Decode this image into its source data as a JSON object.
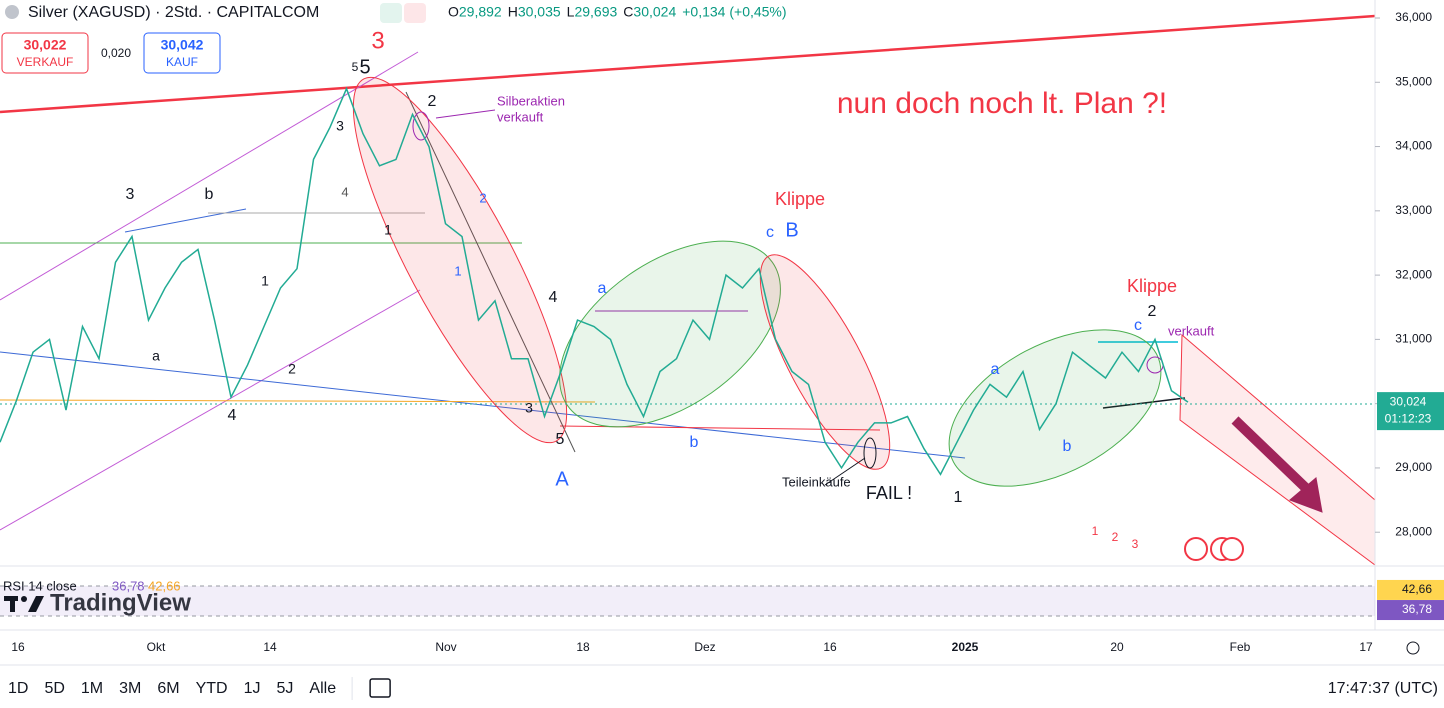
{
  "header": {
    "symbol": "Silver (XAGUSD) · 2Std. · CAPITALCOM",
    "ohlc": [
      {
        "key": "O",
        "value": "29,892"
      },
      {
        "key": "H",
        "value": "30,035"
      },
      {
        "key": "L",
        "value": "29,693"
      },
      {
        "key": "C",
        "value": "30,024"
      }
    ],
    "change": "+0,134 (+0,45%)"
  },
  "trade": {
    "sell_price": "30,022",
    "sell_label": "VERKAUF",
    "spread": "0,020",
    "buy_price": "30,042",
    "buy_label": "KAUF"
  },
  "chart_data": {
    "type": "line",
    "ylim": [
      27.49,
      36.28
    ],
    "yticks": [
      {
        "value": 28,
        "label": "28,000"
      },
      {
        "value": 29,
        "label": "29,000"
      },
      {
        "value": 30,
        "label": "30,000"
      },
      {
        "value": 31,
        "label": "31,000"
      },
      {
        "value": 32,
        "label": "32,000"
      },
      {
        "value": 33,
        "label": "33,000"
      },
      {
        "value": 34,
        "label": "34,000"
      },
      {
        "value": 35,
        "label": "35,000"
      },
      {
        "value": 36,
        "label": "36,000"
      }
    ],
    "color": "#22ab94",
    "values": [
      29.4,
      30.05,
      30.8,
      31.0,
      29.9,
      31.2,
      30.7,
      32.2,
      32.6,
      31.3,
      31.8,
      32.2,
      32.4,
      31.3,
      30.1,
      30.6,
      31.2,
      31.8,
      32.1,
      33.8,
      34.3,
      34.9,
      34.2,
      33.7,
      33.8,
      34.5,
      34.0,
      32.8,
      32.6,
      31.3,
      31.6,
      30.7,
      30.7,
      29.8,
      30.5,
      31.3,
      31.2,
      31.0,
      30.3,
      29.8,
      30.5,
      30.7,
      31.3,
      31.0,
      32.0,
      31.8,
      32.1,
      31.0,
      30.5,
      30.3,
      29.4,
      29.0,
      29.4,
      29.7,
      29.7,
      29.8,
      29.3,
      28.9,
      29.4,
      29.9,
      30.3,
      30.1,
      30.5,
      29.6,
      30.0,
      30.8,
      30.6,
      30.4,
      30.8,
      30.5,
      31.0,
      30.2,
      30.024
    ],
    "last_price": {
      "value": 30.024,
      "label": "30,024"
    },
    "countdown": "01:12:23",
    "time_labels": [
      "16",
      "Okt",
      "14",
      "Nov",
      "18",
      "Dez",
      "16",
      "2025",
      "20",
      "Feb",
      "17"
    ]
  },
  "annotations": [
    "3",
    "nun doch noch lt. Plan ?!",
    "Klippe",
    "Klippe",
    "Silberaktien",
    "verkauft",
    "Teileinkäufe",
    "FAIL !",
    "verkauft",
    "A",
    "B",
    "c",
    "a",
    "b",
    "a",
    "b",
    "c",
    "2",
    "1",
    "5",
    "5",
    "2",
    "3",
    "b",
    "4",
    "a",
    "2",
    "1",
    "3",
    "4",
    "1",
    "2",
    "1",
    "4",
    "3",
    "5",
    "1",
    "2",
    "3"
  ],
  "rsi": {
    "label": "RSI 14 close",
    "ylim": [
      32.4,
      48.5
    ],
    "value": 36.78,
    "value_label": "36,78",
    "ma": 42.66,
    "ma_label": "42,66"
  },
  "watermark": "TradingView",
  "toolbar": {
    "ranges": [
      "1D",
      "5D",
      "1M",
      "3M",
      "6M",
      "YTD",
      "1J",
      "5J",
      "Alle"
    ],
    "clock": "17:47:37 (UTC)"
  }
}
